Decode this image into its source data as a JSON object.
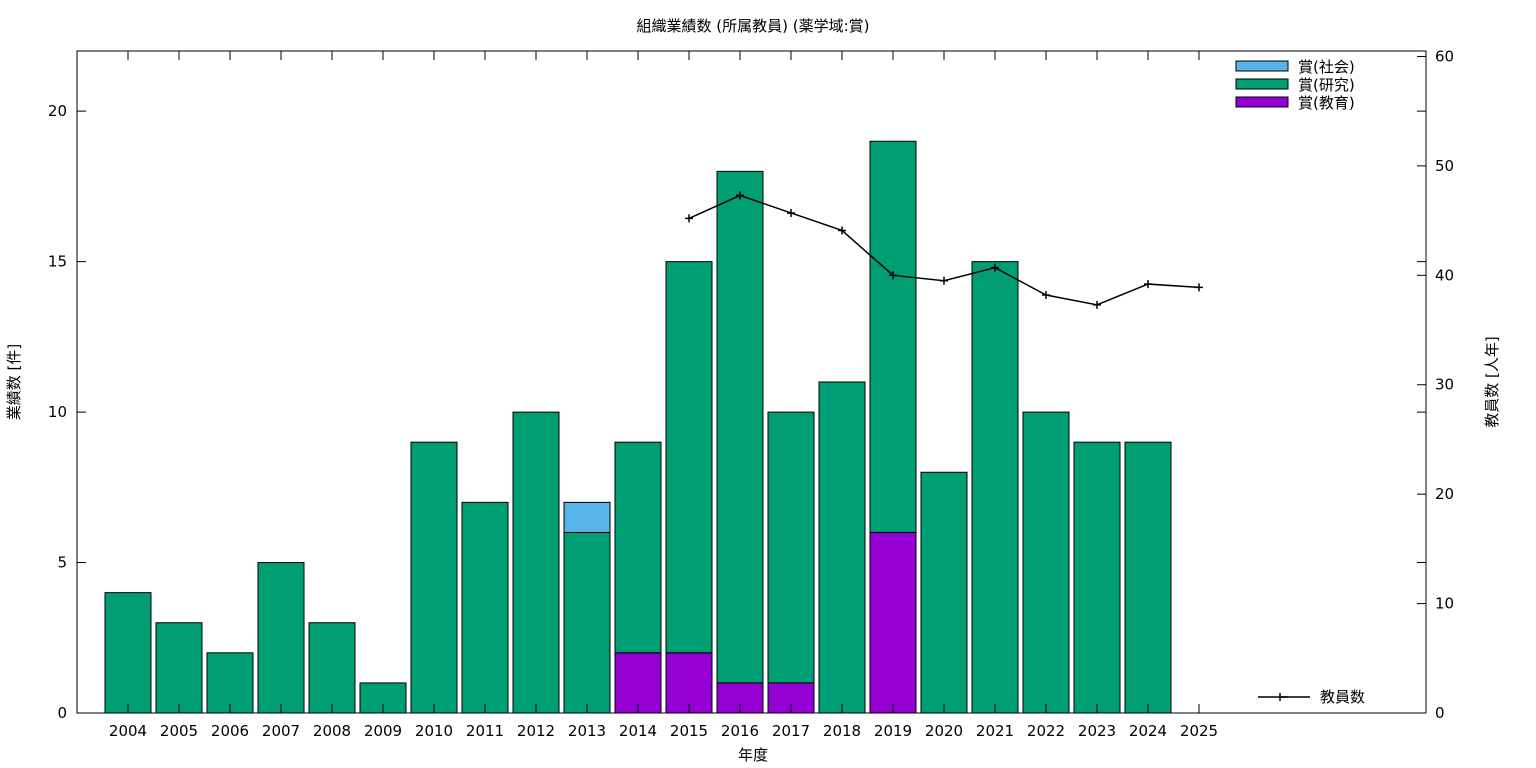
{
  "chart_data": {
    "type": "bar",
    "title": "組織業績数 (所属教員) (薬学域:賞)",
    "xlabel": "年度",
    "ylabel": "業績数 [件]",
    "y2label": "教員数 [人年]",
    "ylim": [
      0,
      22
    ],
    "y2lim": [
      0,
      60.5
    ],
    "yticks": [
      0,
      5,
      10,
      15,
      20
    ],
    "y2ticks": [
      0,
      10,
      20,
      30,
      40,
      50,
      60
    ],
    "grid": false,
    "legend_position": "top-right",
    "categories": [
      "2004",
      "2005",
      "2006",
      "2007",
      "2008",
      "2009",
      "2010",
      "2011",
      "2012",
      "2013",
      "2014",
      "2015",
      "2016",
      "2017",
      "2018",
      "2019",
      "2020",
      "2021",
      "2022",
      "2023",
      "2024",
      "2025"
    ],
    "series": [
      {
        "name": "賞(教育)",
        "color": "#9400d3",
        "values": [
          0,
          0,
          0,
          0,
          0,
          0,
          0,
          0,
          0,
          0,
          2,
          2,
          1,
          1,
          0,
          6,
          0,
          0,
          0,
          0,
          0,
          0
        ]
      },
      {
        "name": "賞(研究)",
        "color": "#009e73",
        "values": [
          4,
          3,
          2,
          5,
          3,
          1,
          9,
          7,
          10,
          6,
          7,
          13,
          17,
          9,
          11,
          13,
          8,
          15,
          10,
          9,
          9,
          0
        ]
      },
      {
        "name": "賞(社会)",
        "color": "#56b4e9",
        "values": [
          0,
          0,
          0,
          0,
          0,
          0,
          0,
          0,
          0,
          1,
          0,
          0,
          0,
          0,
          0,
          0,
          0,
          0,
          0,
          0,
          0,
          0
        ]
      }
    ],
    "line_series": {
      "name": "教員数",
      "axis": "y2",
      "color": "#000000",
      "values": [
        null,
        null,
        null,
        null,
        null,
        null,
        null,
        null,
        null,
        null,
        null,
        45.2,
        47.3,
        45.7,
        44.1,
        40.0,
        39.5,
        40.7,
        38.2,
        37.3,
        39.2,
        38.9
      ]
    }
  }
}
